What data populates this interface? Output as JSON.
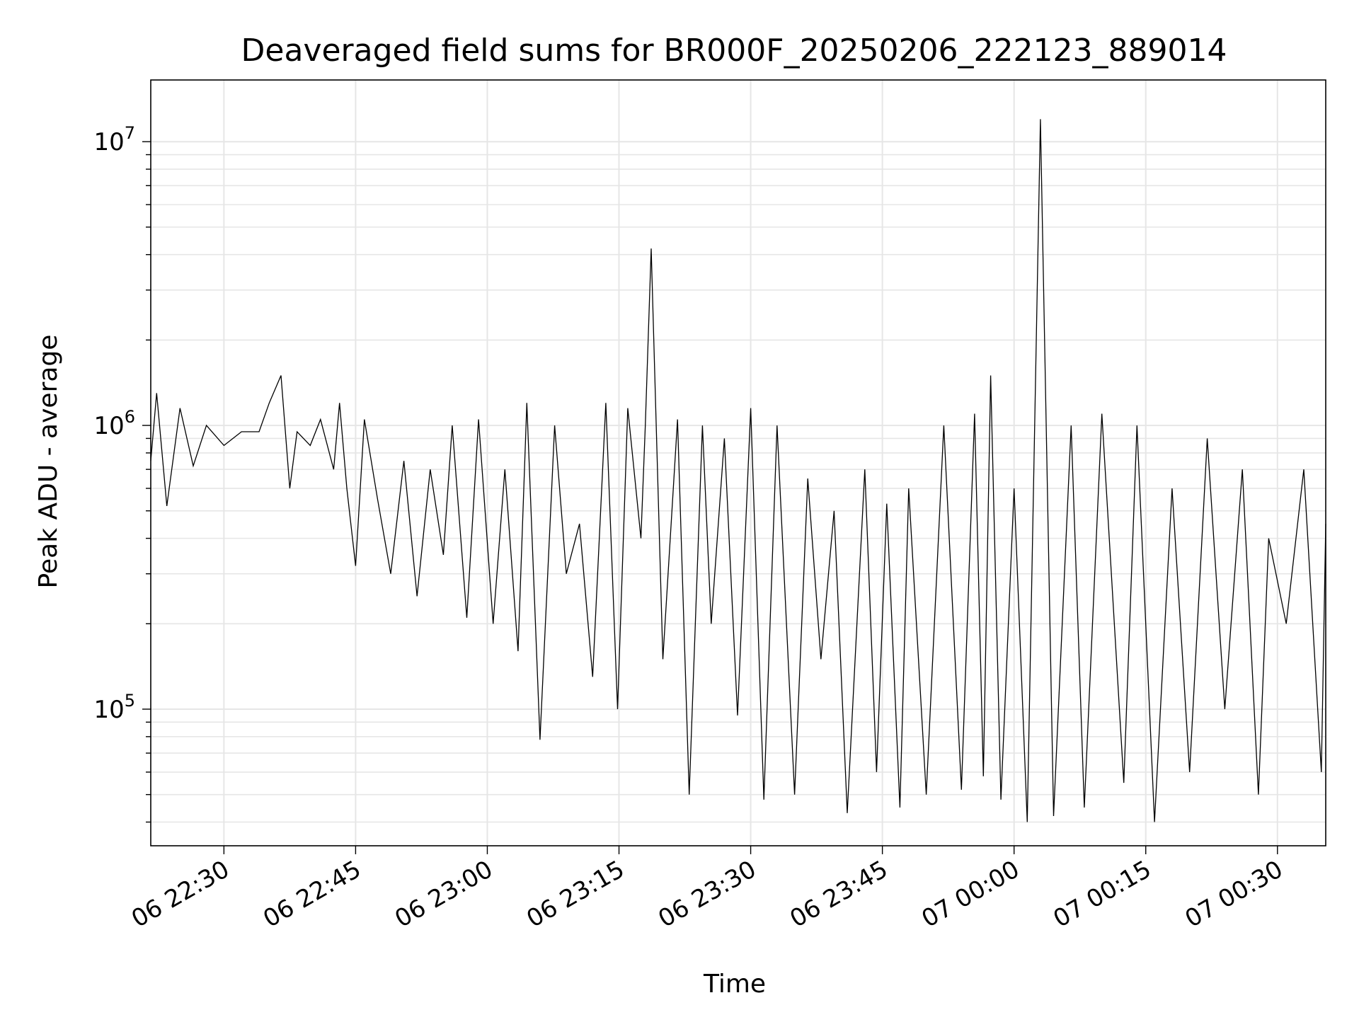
{
  "chart_data": {
    "type": "line",
    "title": "Deaveraged field sums for BR000F_20250206_222123_889014",
    "xlabel": "Time",
    "ylabel": "Peak ADU - average",
    "yscale": "log",
    "ylim": [
      33000,
      16500000
    ],
    "xlim": [
      "2025-02-06 22:21:40",
      "2025-02-07 00:35:30"
    ],
    "x_ticks": [
      {
        "time": "2025-02-06 22:30:00",
        "label": "06 22:30"
      },
      {
        "time": "2025-02-06 22:45:00",
        "label": "06 22:45"
      },
      {
        "time": "2025-02-06 23:00:00",
        "label": "06 23:00"
      },
      {
        "time": "2025-02-06 23:15:00",
        "label": "06 23:15"
      },
      {
        "time": "2025-02-06 23:30:00",
        "label": "06 23:30"
      },
      {
        "time": "2025-02-06 23:45:00",
        "label": "06 23:45"
      },
      {
        "time": "2025-02-07 00:00:00",
        "label": "07 00:00"
      },
      {
        "time": "2025-02-07 00:15:00",
        "label": "07 00:15"
      },
      {
        "time": "2025-02-07 00:30:00",
        "label": "07 00:30"
      }
    ],
    "y_ticks": [
      {
        "value": 100000,
        "base": "10",
        "exp": "5"
      },
      {
        "value": 1000000,
        "base": "10",
        "exp": "6"
      },
      {
        "value": 10000000,
        "base": "10",
        "exp": "7"
      }
    ],
    "grid": true,
    "legend": "none",
    "line_color": "#000000",
    "grid_color": "#e6e6e6",
    "series": [
      {
        "x": [
          "2025-02-06 22:21:40",
          "2025-02-06 22:22:20",
          "2025-02-06 22:23:30",
          "2025-02-06 22:25:00",
          "2025-02-06 22:26:30",
          "2025-02-06 22:28:00",
          "2025-02-06 22:30:00",
          "2025-02-06 22:32:00",
          "2025-02-06 22:34:00",
          "2025-02-06 22:35:10",
          "2025-02-06 22:36:30",
          "2025-02-06 22:37:30",
          "2025-02-06 22:38:20",
          "2025-02-06 22:39:50",
          "2025-02-06 22:41:00",
          "2025-02-06 22:42:30",
          "2025-02-06 22:43:10",
          "2025-02-06 22:44:00",
          "2025-02-06 22:45:00",
          "2025-02-06 22:46:00",
          "2025-02-06 22:47:30",
          "2025-02-06 22:49:00",
          "2025-02-06 22:50:30",
          "2025-02-06 22:52:00",
          "2025-02-06 22:53:30",
          "2025-02-06 22:55:00",
          "2025-02-06 22:56:00",
          "2025-02-06 22:57:40",
          "2025-02-06 22:59:00",
          "2025-02-06 23:00:40",
          "2025-02-06 23:02:00",
          "2025-02-06 23:03:30",
          "2025-02-06 23:04:30",
          "2025-02-06 23:06:00",
          "2025-02-06 23:07:40",
          "2025-02-06 23:09:00",
          "2025-02-06 23:10:30",
          "2025-02-06 23:12:00",
          "2025-02-06 23:13:30",
          "2025-02-06 23:14:50",
          "2025-02-06 23:16:00",
          "2025-02-06 23:17:30",
          "2025-02-06 23:18:00",
          "2025-02-06 23:18:40",
          "2025-02-06 23:20:00",
          "2025-02-06 23:21:40",
          "2025-02-06 23:23:00",
          "2025-02-06 23:24:30",
          "2025-02-06 23:25:30",
          "2025-02-06 23:27:00",
          "2025-02-06 23:28:30",
          "2025-02-06 23:30:00",
          "2025-02-06 23:31:30",
          "2025-02-06 23:33:00",
          "2025-02-06 23:35:00",
          "2025-02-06 23:36:30",
          "2025-02-06 23:38:00",
          "2025-02-06 23:39:30",
          "2025-02-06 23:41:00",
          "2025-02-06 23:43:00",
          "2025-02-06 23:44:20",
          "2025-02-06 23:45:30",
          "2025-02-06 23:47:00",
          "2025-02-06 23:48:00",
          "2025-02-06 23:50:00",
          "2025-02-06 23:52:00",
          "2025-02-06 23:54:00",
          "2025-02-06 23:55:30",
          "2025-02-06 23:56:30",
          "2025-02-06 23:57:20",
          "2025-02-06 23:58:30",
          "2025-02-07 00:00:00",
          "2025-02-07 00:01:30",
          "2025-02-07 00:03:00",
          "2025-02-07 00:04:30",
          "2025-02-07 00:06:30",
          "2025-02-07 00:08:00",
          "2025-02-07 00:10:00",
          "2025-02-07 00:12:30",
          "2025-02-07 00:14:00",
          "2025-02-07 00:16:00",
          "2025-02-07 00:18:00",
          "2025-02-07 00:20:00",
          "2025-02-07 00:22:00",
          "2025-02-07 00:24:00",
          "2025-02-07 00:26:00",
          "2025-02-07 00:27:50",
          "2025-02-07 00:29:00",
          "2025-02-07 00:31:00",
          "2025-02-07 00:33:00",
          "2025-02-07 00:35:00",
          "2025-02-07 00:35:30"
        ],
        "y": [
          750000,
          1300000,
          520000,
          1150000,
          720000,
          1000000,
          850000,
          950000,
          950000,
          1200000,
          1500000,
          600000,
          950000,
          850000,
          1050000,
          700000,
          1200000,
          600000,
          320000,
          1050000,
          550000,
          300000,
          750000,
          250000,
          700000,
          350000,
          1000000,
          210000,
          1050000,
          200000,
          700000,
          160000,
          1200000,
          78000,
          1000000,
          300000,
          450000,
          130000,
          1200000,
          100000,
          1150000,
          400000,
          1000000,
          4200000,
          150000,
          1050000,
          50000,
          1000000,
          200000,
          900000,
          95000,
          1150000,
          48000,
          1000000,
          50000,
          650000,
          150000,
          500000,
          43000,
          700000,
          60000,
          530000,
          45000,
          600000,
          50000,
          1000000,
          52000,
          1100000,
          58000,
          1500000,
          48000,
          600000,
          40000,
          12000000,
          42000,
          1000000,
          45000,
          1100000,
          55000,
          1000000,
          40000,
          600000,
          60000,
          900000,
          100000,
          700000,
          50000,
          400000,
          200000,
          700000,
          60000,
          450000
        ]
      }
    ]
  }
}
